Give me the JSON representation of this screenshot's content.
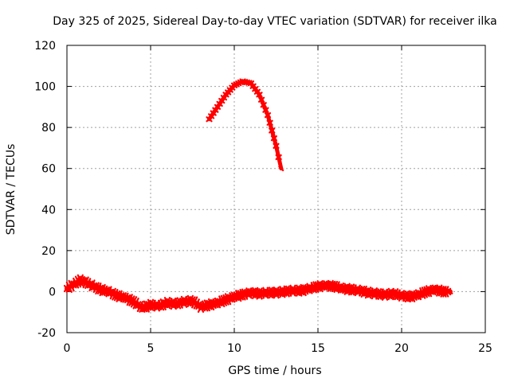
{
  "chart_data": {
    "type": "scatter",
    "title": "Day 325 of 2025, Sidereal Day-to-day VTEC variation (SDTVAR) for receiver ilka",
    "xlabel": "GPS time / hours",
    "ylabel": "SDTVAR / TECUs",
    "xlim": [
      0,
      25
    ],
    "ylim": [
      -20,
      120
    ],
    "xticks": [
      0,
      5,
      10,
      15,
      20,
      25
    ],
    "yticks": [
      -20,
      0,
      20,
      40,
      60,
      80,
      100,
      120
    ],
    "grid": true,
    "series": [
      {
        "name": "SDTVAR low band",
        "color": "#ff0000",
        "points": [
          [
            0.0,
            1.5
          ],
          [
            0.8,
            5.5
          ],
          [
            1.0,
            5.0
          ],
          [
            1.5,
            3.0
          ],
          [
            2.0,
            1.0
          ],
          [
            2.5,
            0.0
          ],
          [
            3.0,
            -2.0
          ],
          [
            3.5,
            -3.0
          ],
          [
            4.0,
            -5.0
          ],
          [
            4.5,
            -8.0
          ],
          [
            5.0,
            -6.5
          ],
          [
            5.5,
            -7.0
          ],
          [
            6.0,
            -5.5
          ],
          [
            6.5,
            -6.0
          ],
          [
            7.0,
            -5.0
          ],
          [
            7.5,
            -4.5
          ],
          [
            8.0,
            -7.5
          ],
          [
            8.5,
            -6.5
          ],
          [
            9.0,
            -5.5
          ],
          [
            9.5,
            -4.0
          ],
          [
            10.0,
            -2.5
          ],
          [
            10.5,
            -1.5
          ],
          [
            11.0,
            -0.5
          ],
          [
            11.5,
            -1.0
          ],
          [
            12.0,
            -0.5
          ],
          [
            12.5,
            -0.5
          ],
          [
            13.0,
            0.0
          ],
          [
            13.5,
            0.5
          ],
          [
            14.0,
            0.5
          ],
          [
            14.5,
            1.5
          ],
          [
            15.0,
            2.5
          ],
          [
            15.5,
            3.0
          ],
          [
            16.0,
            2.5
          ],
          [
            16.5,
            1.5
          ],
          [
            17.0,
            1.0
          ],
          [
            17.5,
            0.5
          ],
          [
            18.0,
            -0.5
          ],
          [
            18.5,
            -1.0
          ],
          [
            19.0,
            -1.5
          ],
          [
            19.5,
            -1.0
          ],
          [
            20.0,
            -2.0
          ],
          [
            20.5,
            -2.5
          ],
          [
            21.0,
            -1.5
          ],
          [
            21.5,
            0.0
          ],
          [
            22.0,
            1.0
          ],
          [
            22.5,
            0.0
          ],
          [
            22.9,
            0.0
          ]
        ]
      },
      {
        "name": "SDTVAR peak",
        "color": "#ff0000",
        "points": [
          [
            8.5,
            84
          ],
          [
            9.0,
            90
          ],
          [
            9.5,
            96
          ],
          [
            10.0,
            100.5
          ],
          [
            10.5,
            102.5
          ],
          [
            11.0,
            101.5
          ],
          [
            11.5,
            96
          ],
          [
            12.0,
            86
          ],
          [
            12.5,
            71
          ],
          [
            12.8,
            60
          ]
        ]
      }
    ]
  }
}
